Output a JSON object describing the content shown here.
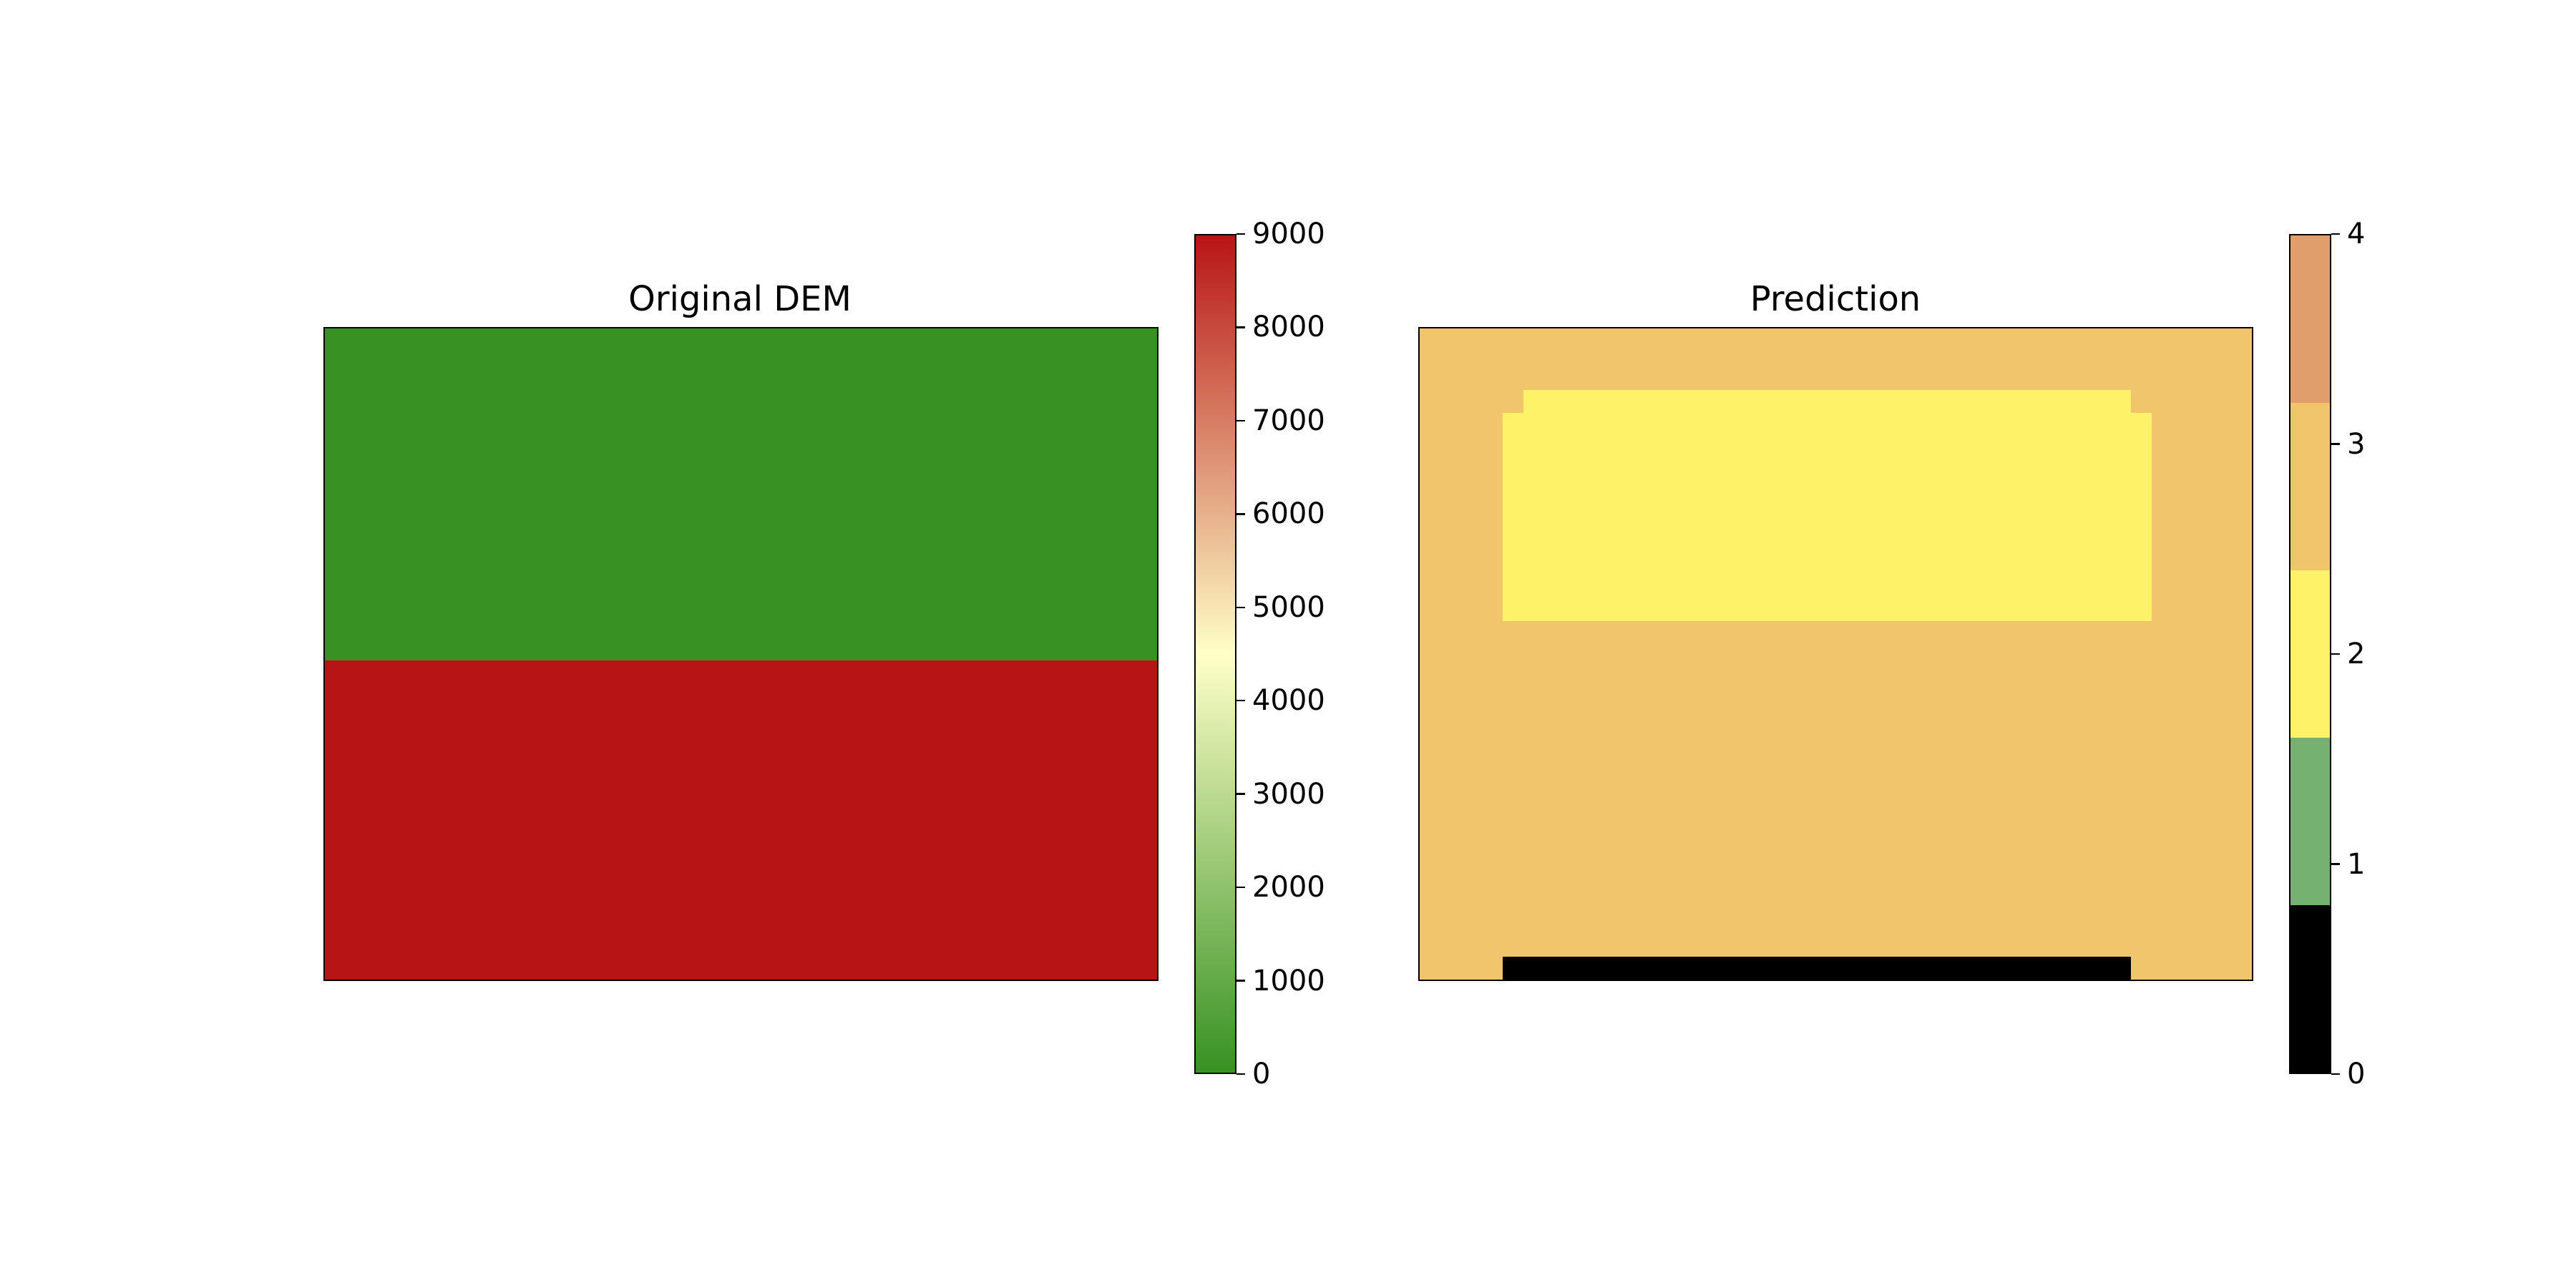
{
  "chart_data": [
    {
      "type": "heatmap",
      "title": "Original DEM",
      "xlabel": "",
      "ylabel": "",
      "grid": false,
      "regions": [
        {
          "rows": [
            0.0,
            0.51
          ],
          "cols": [
            0.0,
            1.0
          ],
          "value": 0,
          "color": "#379123"
        },
        {
          "rows": [
            0.51,
            1.0
          ],
          "cols": [
            0.0,
            1.0
          ],
          "value": 9000,
          "color": "#b71515"
        }
      ],
      "colorbar": {
        "type": "continuous",
        "range": [
          0,
          9000
        ],
        "ticks": [
          "0",
          "1000",
          "2000",
          "3000",
          "4000",
          "5000",
          "6000",
          "7000",
          "8000",
          "9000"
        ],
        "gradient": [
          "#379123",
          "#ffffc8",
          "#b71515"
        ]
      }
    },
    {
      "type": "heatmap",
      "title": "Prediction",
      "xlabel": "",
      "ylabel": "",
      "grid": false,
      "background_value": 3,
      "regions": [
        {
          "rows": [
            0.095,
            0.45
          ],
          "cols": [
            0.125,
            0.855
          ],
          "value": 2,
          "color": "#fef368"
        },
        {
          "rows": [
            0.13,
            0.45
          ],
          "cols": [
            0.1,
            0.88
          ],
          "value": 2,
          "color": "#fef368"
        },
        {
          "rows": [
            0.965,
            1.0
          ],
          "cols": [
            0.1,
            0.855
          ],
          "value": 0,
          "color": "#000000"
        }
      ],
      "colorbar": {
        "type": "discrete",
        "range": [
          0,
          4
        ],
        "ticks": [
          "0",
          "1",
          "2",
          "3",
          "4"
        ],
        "classes": [
          {
            "value": 0,
            "color": "#000000"
          },
          {
            "value": 1,
            "color": "#75b171"
          },
          {
            "value": 2,
            "color": "#fef368"
          },
          {
            "value": 3,
            "color": "#f0c56b"
          },
          {
            "value": 4,
            "color": "#df9e6b"
          }
        ]
      }
    }
  ]
}
